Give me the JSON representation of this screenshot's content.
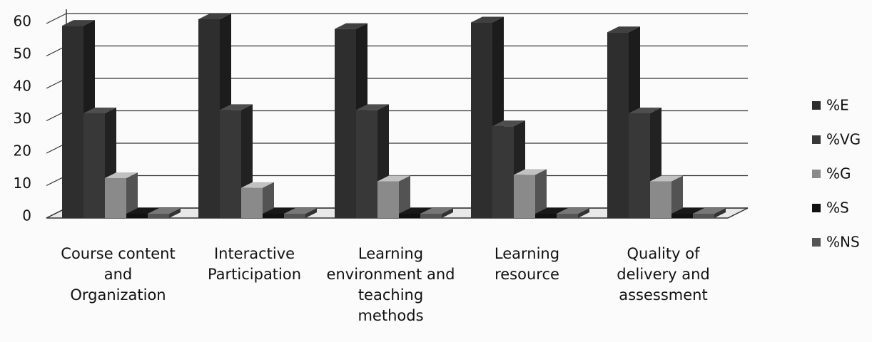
{
  "chart_data": {
    "type": "bar3d",
    "categories": [
      "Course content and Organization",
      "Interactive Participation",
      "Learning environment and teaching methods",
      "Learning resource",
      "Quality of delivery and assessment"
    ],
    "series": [
      {
        "name": "%E",
        "color": "#2e2e2e",
        "values": [
          58,
          60,
          57,
          59,
          56
        ]
      },
      {
        "name": "%VG",
        "color": "#383838",
        "values": [
          31,
          32,
          32,
          27,
          31
        ]
      },
      {
        "name": "%G",
        "color": "#8a8a8a",
        "values": [
          11,
          8,
          10,
          12,
          10
        ]
      },
      {
        "name": "%S",
        "color": "#111111",
        "values": [
          0,
          0,
          0,
          0,
          0
        ]
      },
      {
        "name": "%NS",
        "color": "#555555",
        "values": [
          0,
          0,
          0,
          0,
          0
        ]
      }
    ],
    "ylim": [
      0,
      60
    ],
    "yticks": [
      0,
      10,
      20,
      30,
      40,
      50,
      60
    ],
    "grid": true,
    "legend": "right"
  }
}
